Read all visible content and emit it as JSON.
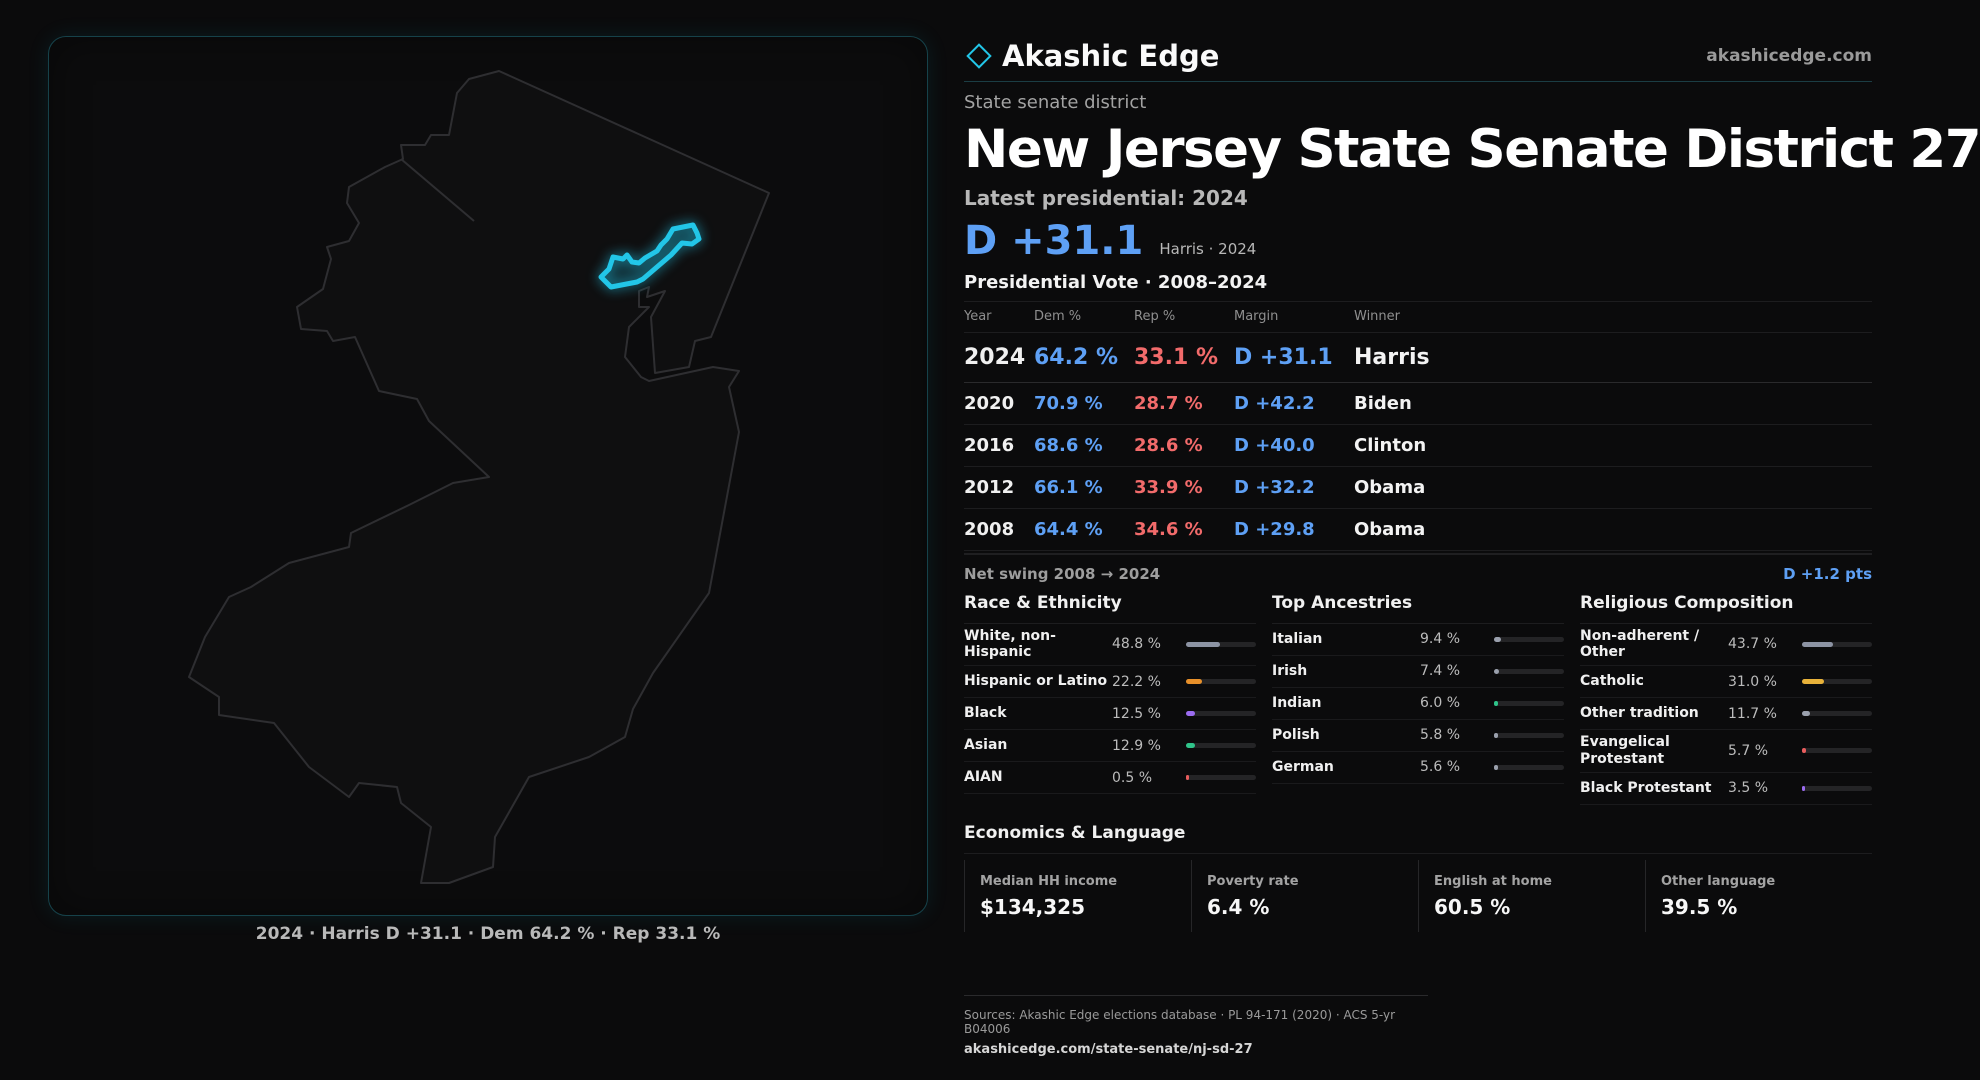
{
  "map": {
    "caption": "2024 · Harris D +31.1 · Dem 64.2 % · Rep 33.1 %",
    "accent_color": "#22c6e8",
    "outline_color": "#2e2e31"
  },
  "header": {
    "brand": "Akashic Edge",
    "site": "akashicedge.com",
    "kicker": "State senate district",
    "title": "New Jersey State Senate District 27",
    "latest": "Latest presidential: 2024",
    "margin": "D +31.1",
    "margin_sub": "Harris · 2024"
  },
  "votes": {
    "title": "Presidential Vote · 2008–2024",
    "columns": [
      "Year",
      "Dem %",
      "Rep %",
      "Margin",
      "Winner"
    ],
    "rows": [
      {
        "year": "2024",
        "dem": "64.2 %",
        "rep": "33.1 %",
        "margin": "D +31.1",
        "winner": "Harris"
      },
      {
        "year": "2020",
        "dem": "70.9 %",
        "rep": "28.7 %",
        "margin": "D +42.2",
        "winner": "Biden"
      },
      {
        "year": "2016",
        "dem": "68.6 %",
        "rep": "28.6 %",
        "margin": "D +40.0",
        "winner": "Clinton"
      },
      {
        "year": "2012",
        "dem": "66.1 %",
        "rep": "33.9 %",
        "margin": "D +32.2",
        "winner": "Obama"
      },
      {
        "year": "2008",
        "dem": "64.4 %",
        "rep": "34.6 %",
        "margin": "D +29.8",
        "winner": "Obama"
      }
    ],
    "swing_label": "Net swing 2008 → 2024",
    "swing_value": "D +1.2 pts"
  },
  "race": {
    "title": "Race & Ethnicity",
    "items": [
      {
        "label": "White, non-Hispanic",
        "value": "48.8 %",
        "pct": 48.8,
        "color": "#8c93a3"
      },
      {
        "label": "Hispanic or Latino",
        "value": "22.2 %",
        "pct": 22.2,
        "color": "#e8902a"
      },
      {
        "label": "Black",
        "value": "12.5 %",
        "pct": 12.5,
        "color": "#9b6cf0"
      },
      {
        "label": "Asian",
        "value": "12.9 %",
        "pct": 12.9,
        "color": "#2fc48a"
      },
      {
        "label": "AIAN",
        "value": "0.5 %",
        "pct": 0.5,
        "color": "#e85d5d"
      }
    ]
  },
  "ancestry": {
    "title": "Top Ancestries",
    "items": [
      {
        "label": "Italian",
        "value": "9.4 %",
        "pct": 9.4,
        "color": "#9aa0ad"
      },
      {
        "label": "Irish",
        "value": "7.4 %",
        "pct": 7.4,
        "color": "#9aa0ad"
      },
      {
        "label": "Indian",
        "value": "6.0 %",
        "pct": 6.0,
        "color": "#2fc48a"
      },
      {
        "label": "Polish",
        "value": "5.8 %",
        "pct": 5.8,
        "color": "#9aa0ad"
      },
      {
        "label": "German",
        "value": "5.6 %",
        "pct": 5.6,
        "color": "#9aa0ad"
      }
    ]
  },
  "religion": {
    "title": "Religious Composition",
    "items": [
      {
        "label": "Non-adherent / Other",
        "value": "43.7 %",
        "pct": 43.7,
        "color": "#8c93a3"
      },
      {
        "label": "Catholic",
        "value": "31.0 %",
        "pct": 31.0,
        "color": "#e8b23a"
      },
      {
        "label": "Other tradition",
        "value": "11.7 %",
        "pct": 11.7,
        "color": "#9aa0ad"
      },
      {
        "label": "Evangelical Protestant",
        "value": "5.7 %",
        "pct": 5.7,
        "color": "#e85d5d"
      },
      {
        "label": "Black Protestant",
        "value": "3.5 %",
        "pct": 3.5,
        "color": "#9b6cf0"
      }
    ]
  },
  "economics": {
    "title": "Economics & Language",
    "cells": [
      {
        "label": "Median HH income",
        "value": "$134,325"
      },
      {
        "label": "Poverty rate",
        "value": "6.4 %"
      },
      {
        "label": "English at home",
        "value": "60.5 %"
      },
      {
        "label": "Other language",
        "value": "39.5 %"
      }
    ]
  },
  "sources": {
    "line": "Sources: Akashic Edge elections database · PL 94-171 (2020) · ACS 5-yr B04006",
    "url": "akashicedge.com/state-senate/nj-sd-27"
  }
}
